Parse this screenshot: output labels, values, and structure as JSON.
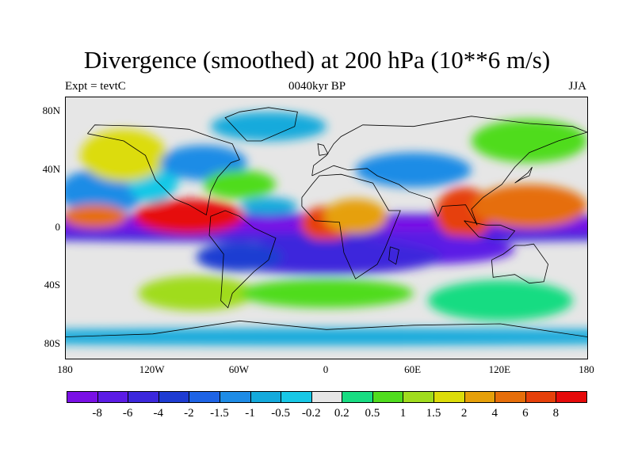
{
  "figure": {
    "title": "Divergence (smoothed) at 200 hPa (10**6 m/s)",
    "left_label": "Expt = tevtC",
    "center_label": "0040kyr BP",
    "right_label": "JJA"
  },
  "axes": {
    "y_ticks": [
      {
        "label": "80N",
        "lat": 80
      },
      {
        "label": "40N",
        "lat": 40
      },
      {
        "label": "0",
        "lat": 0
      },
      {
        "label": "40S",
        "lat": -40
      },
      {
        "label": "80S",
        "lat": -80
      }
    ],
    "x_ticks": [
      {
        "label": "180",
        "lon": -180
      },
      {
        "label": "120W",
        "lon": -120
      },
      {
        "label": "60W",
        "lon": -60
      },
      {
        "label": "0",
        "lon": 0
      },
      {
        "label": "60E",
        "lon": 60
      },
      {
        "label": "120E",
        "lon": 120
      },
      {
        "label": "180",
        "lon": 180
      }
    ]
  },
  "colorbar": {
    "colors": [
      "#7a10e6",
      "#5c1ce6",
      "#3c28dc",
      "#1e3cd2",
      "#1e64e6",
      "#1e8ce6",
      "#14aadc",
      "#18c8e6",
      "#e6e6e6",
      "#18dc82",
      "#50dc1e",
      "#a0dc1e",
      "#dcdc0a",
      "#e6a00a",
      "#e66e0a",
      "#e6400a",
      "#e60a0a"
    ],
    "labels": [
      "-8",
      "-6",
      "-4",
      "-2",
      "-1.5",
      "-1",
      "-0.5",
      "-0.2",
      "0.2",
      "0.5",
      "1",
      "1.5",
      "2",
      "4",
      "6",
      "8"
    ]
  },
  "colors": {
    "land_outline": "#000000",
    "background_field": "#e6e6e6"
  },
  "field_blobs": [
    {
      "lon": -180,
      "lat": 0,
      "rx": 360,
      "ry": 10,
      "level": 2
    },
    {
      "lon": -180,
      "lat": 2,
      "rx": 360,
      "ry": 5,
      "level": 0
    },
    {
      "lon": -155,
      "lat": 25,
      "rx": 30,
      "ry": 16,
      "level": 5
    },
    {
      "lon": -120,
      "lat": 35,
      "rx": 18,
      "ry": 18,
      "level": 7
    },
    {
      "lon": -140,
      "lat": 50,
      "rx": 30,
      "ry": 18,
      "level": 12
    },
    {
      "lon": -95,
      "lat": 8,
      "rx": 38,
      "ry": 12,
      "level": 16
    },
    {
      "lon": -160,
      "lat": 8,
      "rx": 22,
      "ry": 8,
      "level": 14
    },
    {
      "lon": -85,
      "lat": 45,
      "rx": 30,
      "ry": 12,
      "level": 5
    },
    {
      "lon": -60,
      "lat": 30,
      "rx": 25,
      "ry": 10,
      "level": 10
    },
    {
      "lon": -40,
      "lat": 15,
      "rx": 20,
      "ry": 6,
      "level": 6
    },
    {
      "lon": 0,
      "lat": 3,
      "rx": 18,
      "ry": 12,
      "level": 15
    },
    {
      "lon": 20,
      "lat": 8,
      "rx": 22,
      "ry": 12,
      "level": 13
    },
    {
      "lon": 60,
      "lat": 40,
      "rx": 40,
      "ry": 12,
      "level": 5
    },
    {
      "lon": 95,
      "lat": 10,
      "rx": 20,
      "ry": 18,
      "level": 15
    },
    {
      "lon": 140,
      "lat": 15,
      "rx": 40,
      "ry": 15,
      "level": 14
    },
    {
      "lon": 70,
      "lat": -15,
      "rx": 60,
      "ry": 10,
      "level": 1
    },
    {
      "lon": 0,
      "lat": -20,
      "rx": 80,
      "ry": 12,
      "level": 2
    },
    {
      "lon": -60,
      "lat": -20,
      "rx": 30,
      "ry": 10,
      "level": 3
    },
    {
      "lon": -90,
      "lat": -45,
      "rx": 40,
      "ry": 12,
      "level": 11
    },
    {
      "lon": 0,
      "lat": -45,
      "rx": 60,
      "ry": 10,
      "level": 10
    },
    {
      "lon": 120,
      "lat": -50,
      "rx": 50,
      "ry": 14,
      "level": 9
    },
    {
      "lon": -180,
      "lat": -75,
      "rx": 360,
      "ry": 6,
      "level": 6
    },
    {
      "lon": 140,
      "lat": 60,
      "rx": 40,
      "ry": 15,
      "level": 10
    },
    {
      "lon": -40,
      "lat": 70,
      "rx": 40,
      "ry": 10,
      "level": 6
    }
  ]
}
